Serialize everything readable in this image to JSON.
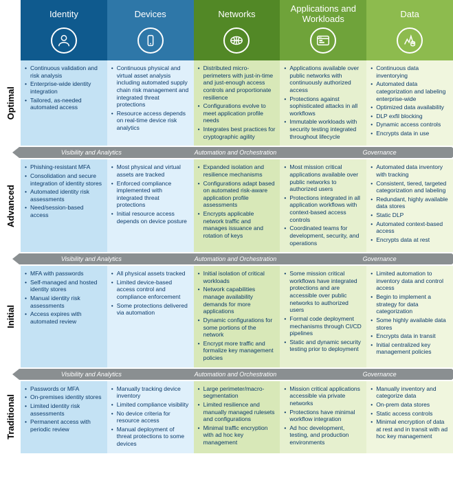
{
  "colors": {
    "header": [
      "#0f5a8e",
      "#2e77a8",
      "#528826",
      "#6fa33a",
      "#8dbb4e"
    ],
    "body": [
      "#c4e2f4",
      "#dff0fb",
      "#d8e8b8",
      "#e6f0cf",
      "#f0f6de"
    ],
    "sep": "#8a8f91",
    "rowlabel": "#111111"
  },
  "columns": [
    {
      "title": "Identity",
      "icon": "person"
    },
    {
      "title": "Devices",
      "icon": "device"
    },
    {
      "title": "Networks",
      "icon": "network"
    },
    {
      "title": "Applications and Workloads",
      "icon": "app"
    },
    {
      "title": "Data",
      "icon": "data"
    }
  ],
  "separators": [
    "Visibility and Analytics",
    "Automation and Orchestration",
    "Governance"
  ],
  "rows": [
    {
      "label": "Optimal",
      "cells": [
        [
          "Continuous validation and risk analysis",
          "Enterprise-wide identity integration",
          "Tailored, as-needed automated access"
        ],
        [
          "Continuous physical and virtual asset analysis including automated supply chain risk management and integrated threat protections",
          "Resource access depends on real-time device risk analytics"
        ],
        [
          "Distributed micro-perimeters with just-in-time and just-enough access controls and proportionate resilience",
          "Configurations evolve to meet application profile needs",
          "Integrates best practices for cryptographic agility"
        ],
        [
          "Applications available over public networks with continuously authorized access",
          "Protections against sophisticated attacks in all workflows",
          "Immutable workloads with security testing integrated throughout lifecycle"
        ],
        [
          "Continuous data inventorying",
          "Automated data categorization and labeling enterprise-wide",
          "Optimized data availability",
          "DLP exfil blocking",
          "Dynamic access controls",
          "Encrypts data in use"
        ]
      ]
    },
    {
      "label": "Advanced",
      "cells": [
        [
          "Phishing-resistant MFA",
          "Consolidation and secure integration of identity stores",
          "Automated identity risk assessments",
          "Need/session-based access"
        ],
        [
          "Most physical and virtual assets are tracked",
          "Enforced compliance implemented with integrated threat protections",
          "Initial resource access depends on device posture"
        ],
        [
          "Expanded isolation and resilience mechanisms",
          "Configurations adapt based on automated risk-aware application profile assessments",
          "Encrypts applicable network traffic and manages issuance and rotation of keys"
        ],
        [
          "Most mission critical applications available over public networks to authorized users",
          "Protections integrated in all application workflows with context-based access controls",
          "Coordinated teams for development, security, and operations"
        ],
        [
          "Automated data inventory with tracking",
          "Consistent, tiered, targeted categorization and labeling",
          "Redundant, highly available data stores",
          "Static DLP",
          "Automated context-based access",
          "Encrypts data at rest"
        ]
      ]
    },
    {
      "label": "Initial",
      "cells": [
        [
          "MFA with passwords",
          "Self-managed and hosted identity stores",
          "Manual identity risk assessments",
          "Access expires with automated review"
        ],
        [
          "All physical assets tracked",
          "Limited device-based access control and compliance enforcement",
          "Some protections delivered via automation"
        ],
        [
          "Initial isolation of critical workloads",
          "Network capabilities manage availability demands for more applications",
          "Dynamic configurations for some portions of the network",
          "Encrypt more traffic and formalize key management policies"
        ],
        [
          "Some mission critical workflows have integrated protections and are accessible over public networks to authorized users",
          "Formal code deployment mechanisms through CI/CD pipelines",
          "Static and dynamic security testing prior to deployment"
        ],
        [
          "Limited automation to inventory data and control access",
          "Begin to implement a strategy for data categorization",
          "Some highly available data stores",
          "Encrypts data in transit",
          "Initial centralized key management policies"
        ]
      ]
    },
    {
      "label": "Traditional",
      "cells": [
        [
          "Passwords or MFA",
          "On-premises identity stores",
          "Limited identity risk assessments",
          "Permanent access with periodic review"
        ],
        [
          "Manually tracking device inventory",
          "Limited compliance visibility",
          "No device criteria for resource access",
          "Manual deployment of threat protections to some devices"
        ],
        [
          "Large perimeter/macro-segmentation",
          "Limited resilience and manually managed rulesets and configurations",
          "Minimal traffic encryption with ad hoc key management"
        ],
        [
          "Mission critical applications accessible via private networks",
          "Protections have minimal workflow integration",
          "Ad hoc development, testing, and production environments"
        ],
        [
          "Manually inventory and categorize data",
          "On-prem data stores",
          "Static access controls",
          "Minimal encryption of data at rest and in transit with ad hoc key management"
        ]
      ]
    }
  ]
}
